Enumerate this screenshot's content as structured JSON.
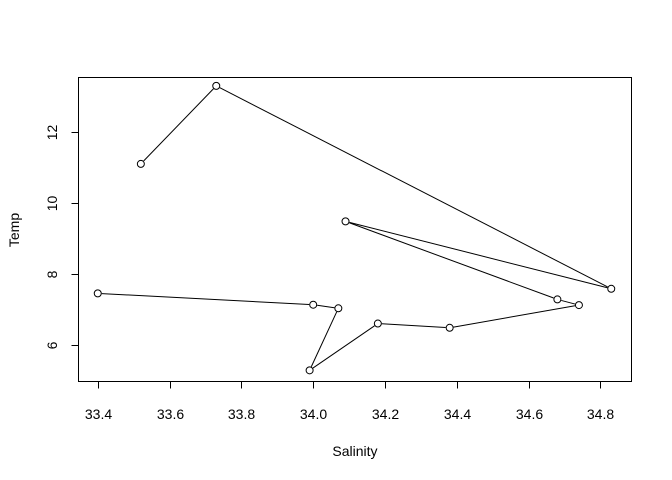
{
  "chart_data": {
    "type": "line",
    "title": "",
    "xlabel": "Salinity",
    "ylabel": "Temp",
    "xlim": [
      33.345,
      34.885
    ],
    "ylim": [
      4.98,
      13.55
    ],
    "x_ticks": [
      33.4,
      33.6,
      33.8,
      34.0,
      34.2,
      34.4,
      34.6,
      34.8
    ],
    "x_tick_labels": [
      "33.4",
      "33.6",
      "33.8",
      "34.0",
      "34.2",
      "34.4",
      "34.6",
      "34.8"
    ],
    "y_ticks": [
      6,
      8,
      10,
      12
    ],
    "y_tick_labels": [
      "6",
      "8",
      "10",
      "12"
    ],
    "grid": false,
    "legend": false,
    "series": [
      {
        "markers": "open-circle",
        "color": "#000000",
        "points": [
          {
            "x": 33.52,
            "y": 11.1
          },
          {
            "x": 33.73,
            "y": 13.3
          },
          {
            "x": 34.83,
            "y": 7.58
          },
          {
            "x": 34.09,
            "y": 9.48
          },
          {
            "x": 34.68,
            "y": 7.28
          },
          {
            "x": 34.74,
            "y": 7.12
          },
          {
            "x": 34.38,
            "y": 6.48
          },
          {
            "x": 34.18,
            "y": 6.6
          },
          {
            "x": 33.99,
            "y": 5.28
          },
          {
            "x": 34.07,
            "y": 7.03
          },
          {
            "x": 34.0,
            "y": 7.13
          },
          {
            "x": 33.4,
            "y": 7.45
          }
        ]
      }
    ]
  }
}
